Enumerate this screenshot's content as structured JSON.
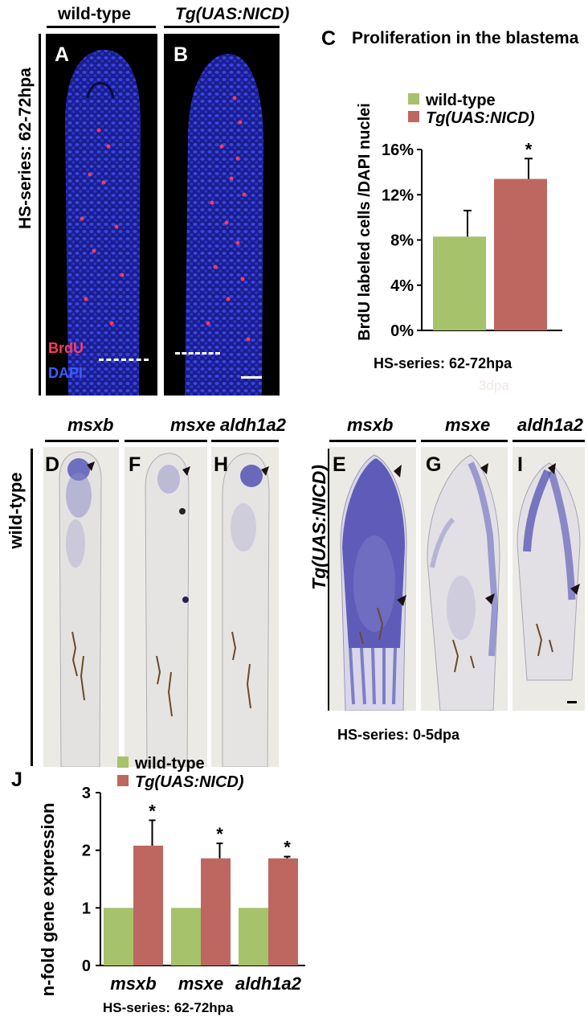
{
  "top": {
    "col_wildtype": "wild-type",
    "col_tg": "Tg(UAS:NICD)",
    "row_label": "HS-series: 62-72hpa",
    "panel_A": "A",
    "panel_B": "B",
    "stain_brdu": "BrdU",
    "stain_dapi": "DAPI"
  },
  "panel_C": {
    "letter": "C",
    "title": "Proliferation in the blastema",
    "ylabel": "BrdU labeled cells /DAPI nuclei",
    "xlabel": "HS-series: 62-72hpa",
    "faint_text": "3dpa",
    "significance": "*"
  },
  "middle": {
    "row_wildtype": "wild-type",
    "row_tg": "Tg(UAS:NICD)",
    "gene_msxb": "msxb",
    "gene_msxe": "msxe",
    "gene_aldh1a2": "aldh1a2",
    "panels": [
      "D",
      "F",
      "H",
      "E",
      "G",
      "I"
    ],
    "caption": "HS-series: 0-5dpa"
  },
  "panel_J": {
    "letter": "J",
    "ylabel": "n-fold gene expression",
    "xlabel": "HS-series: 62-72hpa"
  },
  "colors": {
    "wildtype": "#a6c26a",
    "tg": "#bd6760",
    "dapi": "#2a34d8",
    "brdu": "#ff3a5c"
  },
  "chart_data": [
    {
      "type": "bar",
      "categories": [
        "wild-type",
        "Tg(UAS:NICD)"
      ],
      "values": [
        8.3,
        13.4
      ],
      "errors": [
        2.3,
        1.8
      ],
      "ylim": [
        0,
        16
      ],
      "yticks": [
        "0%",
        "4%",
        "8%",
        "12%",
        "16%"
      ],
      "legend": [
        "wild-type",
        "Tg(UAS:NICD)"
      ],
      "significance": [
        null,
        "*"
      ]
    },
    {
      "type": "bar",
      "categories": [
        "msxb",
        "msxe",
        "aldh1a2"
      ],
      "series": [
        {
          "name": "wild-type",
          "values": [
            1,
            1,
            1
          ],
          "errors": [
            0,
            0,
            0
          ]
        },
        {
          "name": "Tg(UAS:NICD)",
          "values": [
            2.08,
            1.86,
            1.86
          ],
          "errors": [
            0.44,
            0.26,
            0.03
          ]
        }
      ],
      "ylim": [
        0,
        3
      ],
      "yticks": [
        "0",
        "1",
        "2",
        "3"
      ],
      "legend": [
        "wild-type",
        "Tg(UAS:NICD)"
      ],
      "significance": [
        "*",
        "*",
        "*"
      ]
    }
  ]
}
